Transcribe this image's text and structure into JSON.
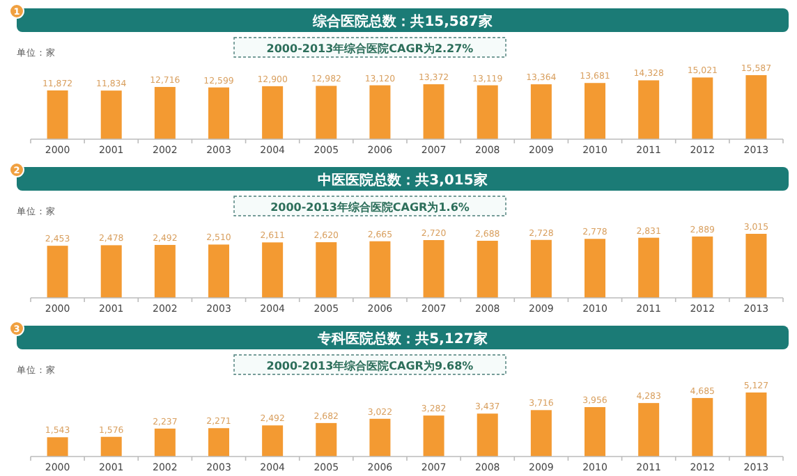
{
  "chart_data": [
    {
      "type": "bar",
      "title": "综合医院总数：共15,587家",
      "subtitle": "2000-2013年综合医院CAGR为2.27%",
      "annotations": [
        "1",
        "单位：家"
      ],
      "categories": [
        "2000",
        "2001",
        "2002",
        "2003",
        "2004",
        "2005",
        "2006",
        "2007",
        "2008",
        "2009",
        "2010",
        "2011",
        "2012",
        "2013"
      ],
      "values": [
        11872,
        11834,
        12716,
        12599,
        12900,
        12982,
        13120,
        13372,
        13119,
        13364,
        13681,
        14328,
        15021,
        15587
      ],
      "color": "#f39a32",
      "value_labels": [
        "11,872",
        "11,834",
        "12,716",
        "12,599",
        "12,900",
        "12,982",
        "13,120",
        "13,372",
        "13,119",
        "13,364",
        "13,681",
        "14,328",
        "15,021",
        "15,587"
      ],
      "tick_labels": "x"
    },
    {
      "type": "bar",
      "title": "中医医院总数：共3,015家",
      "subtitle": "2000-2013年综合医院CAGR为1.6%",
      "annotations": [
        "2",
        "单位：家"
      ],
      "categories": [
        "2000",
        "2001",
        "2002",
        "2003",
        "2004",
        "2005",
        "2006",
        "2007",
        "2008",
        "2009",
        "2010",
        "2011",
        "2012",
        "2013"
      ],
      "values": [
        2453,
        2478,
        2492,
        2510,
        2611,
        2620,
        2665,
        2720,
        2688,
        2728,
        2778,
        2831,
        2889,
        3015
      ],
      "color": "#f39a32",
      "value_labels": [
        "2,453",
        "2,478",
        "2,492",
        "2,510",
        "2,611",
        "2,620",
        "2,665",
        "2,720",
        "2,688",
        "2,728",
        "2,778",
        "2,831",
        "2,889",
        "3,015"
      ],
      "tick_labels": "x"
    },
    {
      "type": "bar",
      "title": "专科医院总数：共5,127家",
      "subtitle": "2000-2013年综合医院CAGR为9.68%",
      "annotations": [
        "3",
        "单位：家"
      ],
      "categories": [
        "2000",
        "2001",
        "2002",
        "2003",
        "2004",
        "2005",
        "2006",
        "2007",
        "2008",
        "2009",
        "2010",
        "2011",
        "2012",
        "2013"
      ],
      "values": [
        1543,
        1576,
        2237,
        2271,
        2492,
        2682,
        3022,
        3282,
        3437,
        3716,
        3956,
        4283,
        4685,
        5127
      ],
      "color": "#f39a32",
      "value_labels": [
        "1,543",
        "1,576",
        "2,237",
        "2,271",
        "2,492",
        "2,682",
        "3,022",
        "3,282",
        "3,437",
        "3,716",
        "3,956",
        "4,283",
        "4,685",
        "5,127"
      ],
      "tick_labels": "x"
    }
  ]
}
